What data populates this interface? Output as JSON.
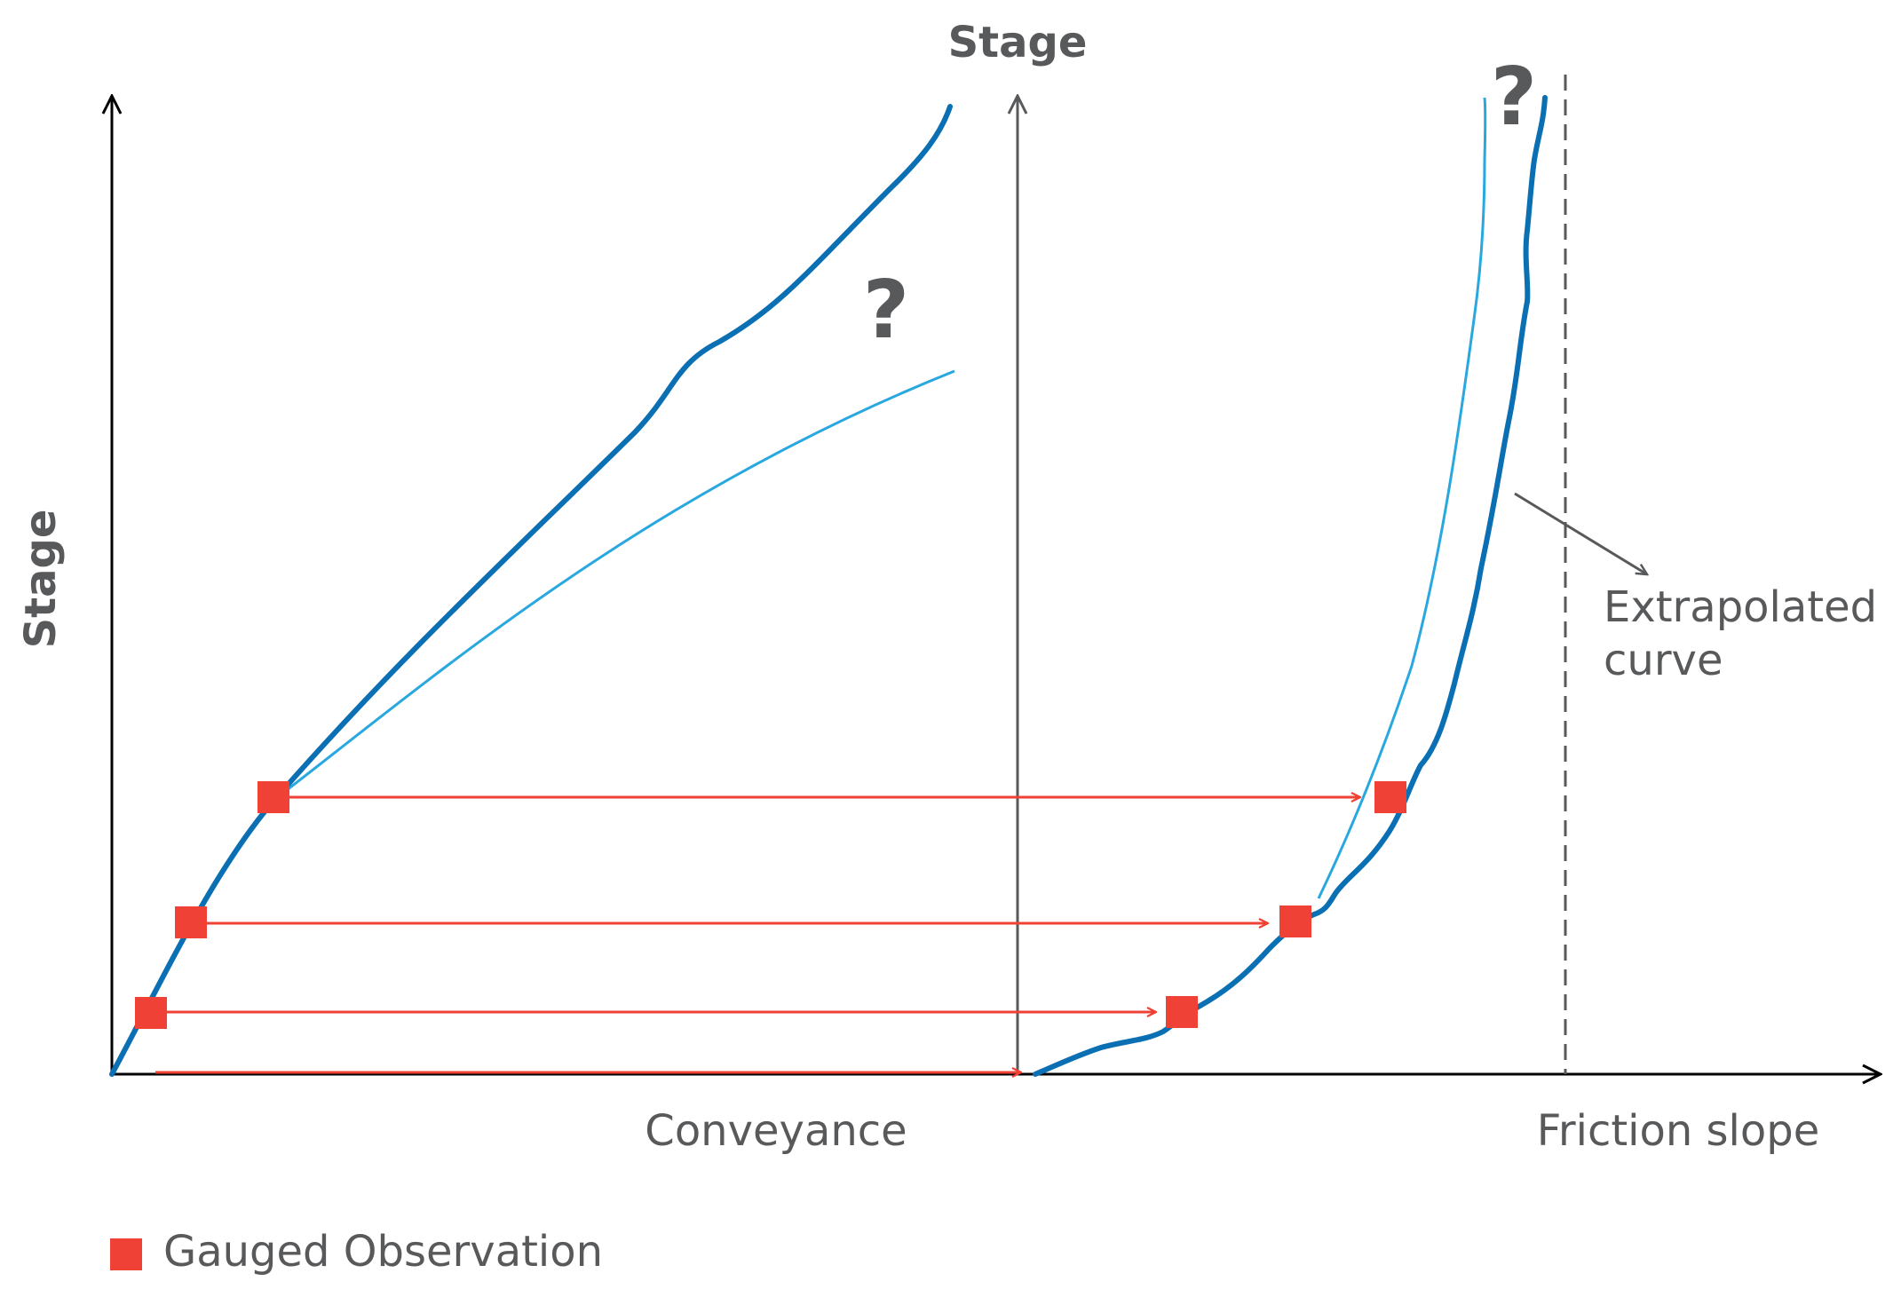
{
  "labels": {
    "stage_left": "Stage",
    "stage_top": "Stage",
    "conveyance": "Conveyance",
    "friction_slope": "Friction slope",
    "extrapolated_line1": "Extrapolated",
    "extrapolated_line2": "curve",
    "question_left": "?",
    "question_right": "?"
  },
  "legend": {
    "items": [
      {
        "label": "Gauged Observation",
        "color": "#ef4136"
      }
    ]
  },
  "colors": {
    "axis": "#000000",
    "divider_axis": "#58595b",
    "dark_curve": "#0a6fb3",
    "light_curve": "#29a8e0",
    "observation": "#ef4136",
    "text": "#58595b",
    "dashed_line": "#58595b"
  },
  "observations": {
    "count": 4,
    "marker_shape": "square"
  }
}
